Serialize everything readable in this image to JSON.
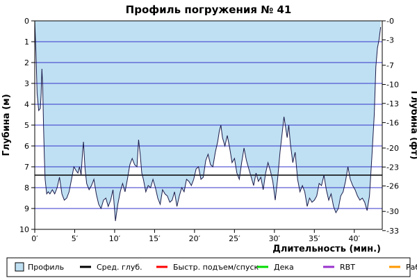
{
  "chart_data": {
    "type": "area",
    "title": "Профиль погружения № 41",
    "xlabel": "Длительность (мин.)",
    "ylabel_left": "Глубина (м)",
    "ylabel_right": "Глубина (фт)",
    "x_unit": "min",
    "y_unit": "m",
    "xlim": [
      0,
      43.5
    ],
    "ylim": [
      0,
      10
    ],
    "y_inverted": true,
    "x_ticks": [
      0,
      5,
      10,
      15,
      20,
      25,
      30,
      35,
      40
    ],
    "x_tick_labels": [
      "0′",
      "5′",
      "10′",
      "15′",
      "20′",
      "25′",
      "30′",
      "35′",
      "40′"
    ],
    "y_ticks": [
      0,
      1,
      2,
      3,
      4,
      5,
      6,
      7,
      8,
      9,
      10
    ],
    "y_tick_labels": [
      "0",
      "1",
      "2",
      "3",
      "4",
      "5",
      "6",
      "7",
      "8",
      "9",
      "10"
    ],
    "y2_ticks_m": [
      0,
      0.91,
      2.13,
      3.05,
      3.96,
      4.88,
      6.1,
      7.01,
      7.92,
      9.14,
      10.06
    ],
    "y2_tick_labels": [
      "0",
      "3",
      "7",
      "10",
      "13",
      "16",
      "20",
      "23",
      "26",
      "30",
      "33"
    ],
    "grid": true,
    "avg_depth": 7.4,
    "colors": {
      "fill": "#bfe0f2",
      "profile_line": "#1a1a4a",
      "grid": "#3333cc",
      "avg_line": "#000000",
      "ascent": "#ff0000",
      "deco": "#00dd00",
      "rbt": "#9933cc",
      "work": "#ff9900"
    },
    "legend": [
      {
        "label": "Профиль",
        "type": "box",
        "color": "#bfe0f2"
      },
      {
        "label": "Сред. глуб.",
        "type": "line",
        "color": "#000000"
      },
      {
        "label": "Быстр. подъем/спуск",
        "type": "line",
        "color": "#ff0000"
      },
      {
        "label": "Дека",
        "type": "line",
        "color": "#00dd00"
      },
      {
        "label": "RBT",
        "type": "line",
        "color": "#9933cc"
      },
      {
        "label": "Раб.",
        "type": "line",
        "color": "#ff9900"
      }
    ],
    "series": [
      {
        "x": [
          0,
          0.15,
          0.3,
          0.5,
          0.7,
          0.8,
          0.9,
          1.0,
          1.1,
          1.2,
          1.3,
          1.5,
          1.7,
          1.9,
          2.2,
          2.5,
          2.8,
          3.1,
          3.4,
          3.7,
          4.0,
          4.3,
          4.6,
          4.9,
          5.2,
          5.4,
          5.6,
          5.8,
          6.0,
          6.1,
          6.2,
          6.3,
          6.5,
          6.8,
          7.1,
          7.4,
          7.7,
          8.0,
          8.3,
          8.6,
          8.9,
          9.2,
          9.5,
          9.8,
          10.1,
          10.4,
          10.7,
          11.0,
          11.3,
          11.6,
          11.9,
          12.2,
          12.5,
          12.8,
          13.0,
          13.2,
          13.4,
          13.6,
          13.9,
          14.2,
          14.5,
          14.8,
          15.1,
          15.4,
          15.7,
          16.0,
          16.3,
          16.6,
          16.9,
          17.2,
          17.5,
          17.8,
          18.1,
          18.4,
          18.7,
          19.0,
          19.3,
          19.6,
          19.9,
          20.2,
          20.5,
          20.8,
          21.1,
          21.4,
          21.7,
          22.0,
          22.3,
          22.6,
          22.9,
          23.1,
          23.3,
          23.5,
          23.8,
          24.1,
          24.4,
          24.7,
          25.0,
          25.3,
          25.6,
          25.9,
          26.2,
          26.5,
          26.8,
          27.1,
          27.4,
          27.7,
          28.0,
          28.3,
          28.6,
          28.9,
          29.2,
          29.5,
          29.8,
          30.1,
          30.4,
          30.7,
          31.0,
          31.2,
          31.4,
          31.6,
          31.8,
          32.0,
          32.3,
          32.6,
          32.9,
          33.2,
          33.5,
          33.8,
          34.1,
          34.4,
          34.7,
          35.0,
          35.3,
          35.6,
          35.9,
          36.2,
          36.5,
          36.8,
          37.1,
          37.4,
          37.7,
          38.0,
          38.3,
          38.6,
          38.9,
          39.2,
          39.5,
          39.8,
          40.1,
          40.4,
          40.7,
          41.0,
          41.3,
          41.6,
          41.9,
          42.2,
          42.5,
          42.7,
          42.9,
          43.1,
          43.3
        ],
        "values": [
          0.0,
          1.5,
          3.5,
          4.3,
          4.2,
          3.5,
          2.3,
          3.2,
          5.0,
          6.5,
          7.6,
          8.3,
          8.2,
          8.3,
          8.1,
          8.3,
          8.0,
          7.5,
          8.3,
          8.6,
          8.5,
          8.2,
          7.6,
          7.0,
          7.2,
          7.3,
          7.0,
          7.4,
          6.2,
          5.8,
          6.5,
          7.1,
          7.8,
          8.1,
          7.9,
          7.6,
          8.3,
          8.8,
          9.0,
          8.6,
          8.5,
          8.9,
          8.6,
          8.1,
          9.6,
          8.8,
          8.2,
          7.8,
          8.2,
          7.6,
          6.9,
          6.6,
          6.9,
          7.0,
          5.7,
          6.4,
          7.3,
          7.6,
          8.2,
          7.9,
          8.0,
          7.6,
          8.0,
          8.5,
          8.8,
          8.1,
          8.3,
          8.4,
          8.7,
          8.6,
          8.2,
          8.9,
          8.4,
          8.0,
          8.2,
          7.6,
          7.7,
          7.9,
          7.6,
          7.1,
          7.0,
          7.6,
          7.5,
          6.7,
          6.4,
          6.9,
          7.0,
          6.3,
          5.8,
          5.3,
          5.0,
          5.6,
          6.0,
          5.5,
          6.1,
          6.8,
          6.6,
          7.3,
          7.6,
          6.8,
          6.1,
          6.7,
          7.1,
          7.5,
          7.9,
          7.3,
          7.7,
          7.5,
          8.1,
          7.3,
          6.8,
          7.2,
          7.7,
          8.6,
          7.6,
          6.3,
          5.3,
          4.6,
          5.1,
          5.6,
          5.0,
          5.9,
          6.8,
          6.3,
          7.6,
          8.2,
          7.9,
          8.2,
          8.9,
          8.5,
          8.7,
          8.6,
          8.4,
          7.8,
          7.9,
          7.4,
          8.1,
          8.6,
          8.3,
          8.9,
          9.2,
          9.0,
          8.4,
          8.2,
          7.7,
          7.0,
          7.6,
          7.9,
          8.1,
          8.4,
          8.6,
          8.5,
          8.7,
          9.1,
          8.4,
          6.5,
          4.5,
          2.2,
          1.3,
          0.9,
          0.3
        ]
      }
    ]
  }
}
